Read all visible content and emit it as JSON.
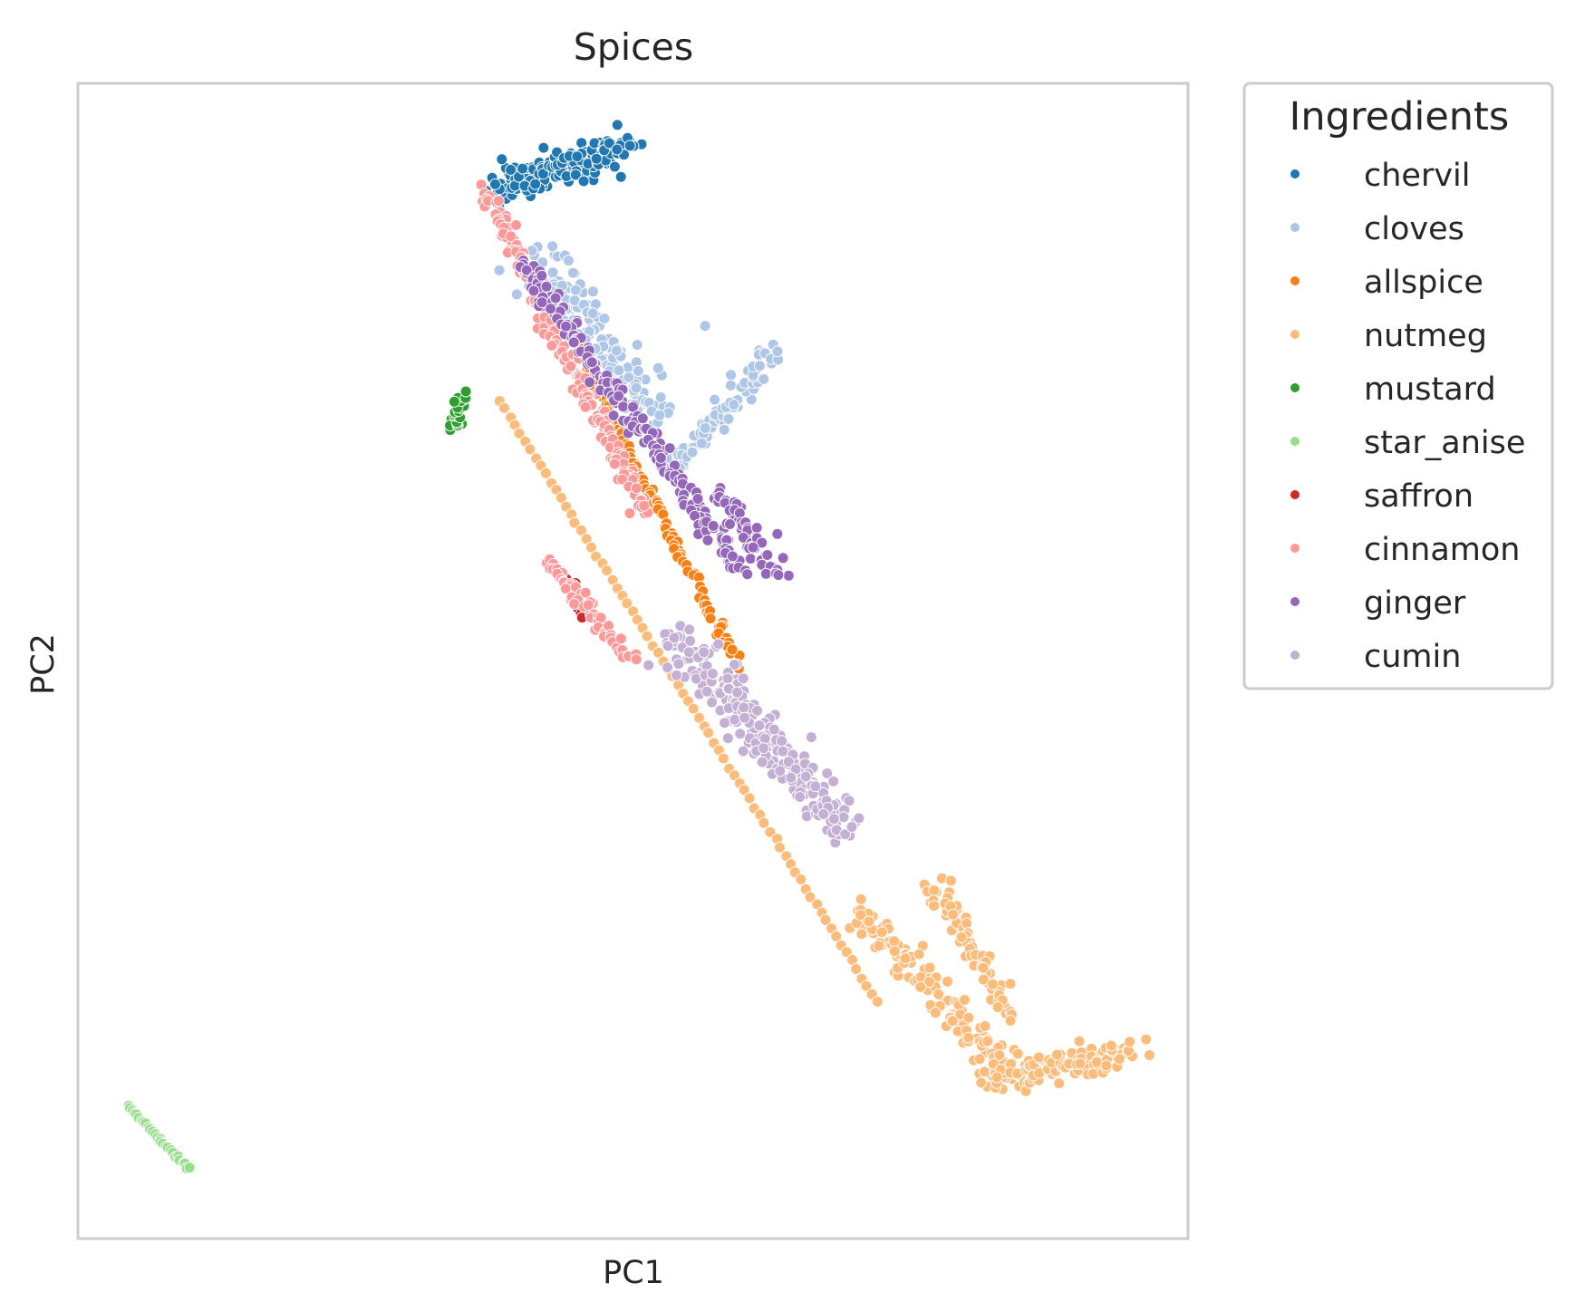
{
  "chart_data": {
    "type": "scatter",
    "title": "Spices",
    "xlabel": "PC1",
    "ylabel": "PC2",
    "xticks_visible": false,
    "yticks_visible": false,
    "grid": false,
    "xlim": [
      -10,
      10
    ],
    "ylim": [
      -10,
      10
    ],
    "point_edge_color": "#ffffff",
    "frame_color": "#cccccc",
    "legend": {
      "title": "Ingredients",
      "placement": "outside-upper-right"
    },
    "series": [
      {
        "name": "chervil",
        "color": "#1f77b4",
        "clusters": [
          {
            "from": [
              -2.5,
              8.2
            ],
            "to": [
              -0.1,
              8.9
            ],
            "n": 160,
            "spread": 0.28
          }
        ]
      },
      {
        "name": "cloves",
        "color": "#aec7e8",
        "clusters": [
          {
            "from": [
              -1.8,
              7.0
            ],
            "to": [
              0.4,
              4.2
            ],
            "n": 170,
            "spread": 0.42
          },
          {
            "from": [
              0.8,
              3.4
            ],
            "to": [
              2.6,
              5.4
            ],
            "n": 80,
            "spread": 0.2
          },
          {
            "from": [
              1.3,
              5.8
            ],
            "to": [
              1.3,
              5.8
            ],
            "n": 1,
            "spread": 0.0
          }
        ]
      },
      {
        "name": "allspice",
        "color": "#ff7f0e",
        "clusters": [
          {
            "from": [
              -1.0,
              5.4
            ],
            "to": [
              1.9,
              -0.1
            ],
            "n": 110,
            "spread": 0.08
          }
        ]
      },
      {
        "name": "nutmeg",
        "color": "#ffbb78",
        "clusters": [
          {
            "from": [
              -2.4,
              4.5
            ],
            "to": [
              4.4,
              -5.9
            ],
            "n": 75,
            "spread": 0.02
          },
          {
            "from": [
              4.0,
              -4.3
            ],
            "to": [
              6.9,
              -7.2
            ],
            "n": 130,
            "spread": 0.25
          },
          {
            "from": [
              5.4,
              -3.8
            ],
            "to": [
              6.8,
              -6.1
            ],
            "n": 70,
            "spread": 0.18
          },
          {
            "from": [
              6.4,
              -7.2
            ],
            "to": [
              9.0,
              -6.8
            ],
            "n": 130,
            "spread": 0.22
          }
        ]
      },
      {
        "name": "mustard",
        "color": "#2ca02c",
        "clusters": [
          {
            "from": [
              -3.2,
              4.0
            ],
            "to": [
              -3.1,
              4.6
            ],
            "n": 30,
            "spread": 0.1
          }
        ]
      },
      {
        "name": "star_anise",
        "color": "#98df8a",
        "clusters": [
          {
            "from": [
              -9.1,
              -7.7
            ],
            "to": [
              -8.0,
              -8.8
            ],
            "n": 28,
            "spread": 0.02
          }
        ]
      },
      {
        "name": "saffron",
        "color": "#d62728",
        "clusters": [
          {
            "from": [
              -1.2,
              1.4
            ],
            "to": [
              -0.9,
              0.8
            ],
            "n": 14,
            "spread": 0.08
          }
        ]
      },
      {
        "name": "cinnamon",
        "color": "#ff9896",
        "clusters": [
          {
            "from": [
              -2.7,
              8.2
            ],
            "to": [
              0.2,
              2.6
            ],
            "n": 170,
            "spread": 0.14
          },
          {
            "from": [
              -1.5,
              1.7
            ],
            "to": [
              0.0,
              0.0
            ],
            "n": 60,
            "spread": 0.1
          }
        ]
      },
      {
        "name": "ginger",
        "color": "#9467bd",
        "clusters": [
          {
            "from": [
              -2.0,
              6.9
            ],
            "to": [
              1.9,
              1.6
            ],
            "n": 190,
            "spread": 0.16
          },
          {
            "from": [
              1.5,
              3.0
            ],
            "to": [
              2.6,
              1.5
            ],
            "n": 60,
            "spread": 0.15
          },
          {
            "from": [
              2.6,
              2.2
            ],
            "to": [
              2.6,
              2.2
            ],
            "n": 1,
            "spread": 0.0
          }
        ]
      },
      {
        "name": "cumin",
        "color": "#c5b0d5",
        "clusters": [
          {
            "from": [
              0.8,
              0.4
            ],
            "to": [
              3.8,
              -2.9
            ],
            "n": 230,
            "spread": 0.32
          }
        ]
      }
    ]
  }
}
